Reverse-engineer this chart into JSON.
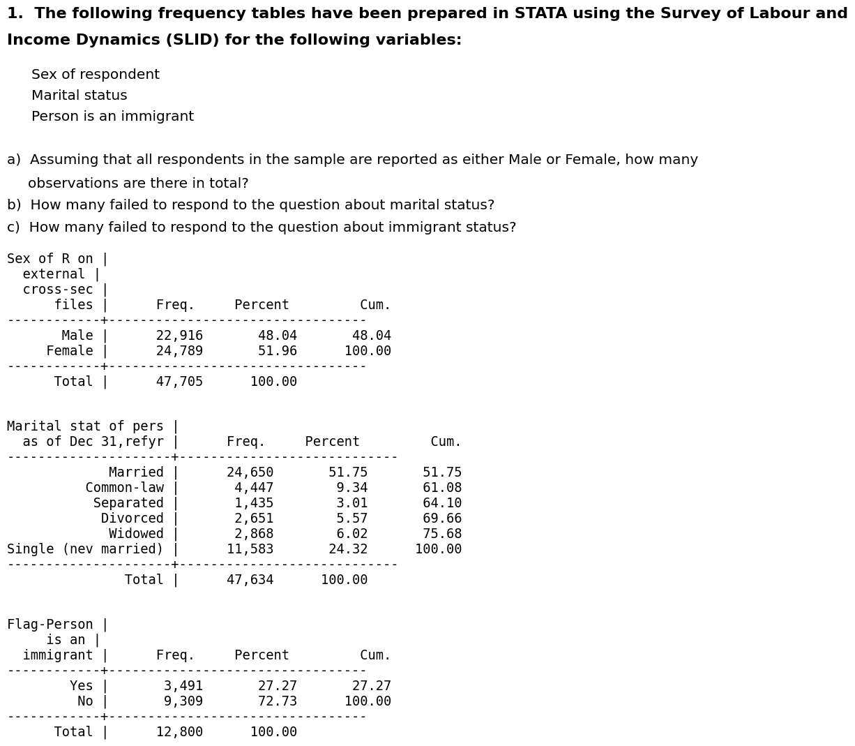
{
  "bg_color": "#ffffff",
  "text_color": "#000000",
  "title_fontsize": 16,
  "body_fontsize": 14.5,
  "mono_fontsize": 13.5,
  "title_line1": "1.  The following frequency tables have been prepared in STATA using the Survey of Labour and",
  "title_line2": "Income Dynamics (SLID) for the following variables:",
  "bullet_items": [
    "Sex of respondent",
    "Marital status",
    "Person is an immigrant"
  ],
  "qa_line1": "a)  Assuming that all respondents in the sample are reported as either Male or Female, how many",
  "qa_line2": "     observations are there in total?",
  "qb": "b)  How many failed to respond to the question about marital status?",
  "qc": "c)  How many failed to respond to the question about immigrant status?",
  "table1_lines": [
    "Sex of R on |",
    "  external |",
    "  cross-sec |",
    "      files |      Freq.     Percent         Cum.",
    "------------+---------------------------------",
    "       Male |      22,916       48.04       48.04",
    "     Female |      24,789       51.96      100.00",
    "------------+---------------------------------",
    "      Total |      47,705      100.00"
  ],
  "table2_lines": [
    "Marital stat of pers |",
    "  as of Dec 31,refyr |      Freq.     Percent         Cum.",
    "---------------------+----------------------------",
    "             Married |      24,650       51.75       51.75",
    "          Common-law |       4,447        9.34       61.08",
    "           Separated |       1,435        3.01       64.10",
    "            Divorced |       2,651        5.57       69.66",
    "             Widowed |       2,868        6.02       75.68",
    "Single (nev married) |      11,583       24.32      100.00",
    "---------------------+----------------------------",
    "               Total |      47,634      100.00"
  ],
  "table3_lines": [
    "Flag-Person |",
    "     is an |",
    "  immigrant |      Freq.     Percent         Cum.",
    "------------+---------------------------------",
    "        Yes |       3,491       27.27       27.27",
    "         No |       9,309       72.73      100.00",
    "------------+---------------------------------",
    "      Total |      12,800      100.00"
  ]
}
